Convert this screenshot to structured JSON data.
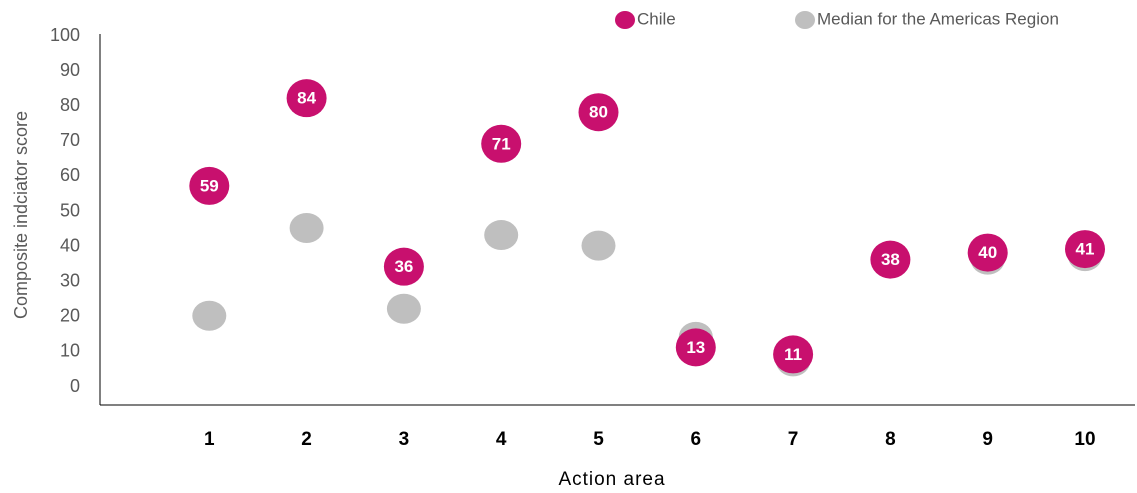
{
  "chart_data": {
    "type": "dot",
    "x_label": "Action area",
    "y_label": "Composite indciator score",
    "categories": [
      "1",
      "2",
      "3",
      "4",
      "5",
      "6",
      "7",
      "8",
      "9",
      "10"
    ],
    "series": [
      {
        "name": "Median for the Americas Region",
        "color": "#bfbfbf",
        "values": [
          22,
          47,
          24,
          45,
          42,
          16,
          9,
          37,
          38,
          39
        ]
      },
      {
        "name": "Chile",
        "color": "#c8106e",
        "values": [
          59,
          84,
          36,
          71,
          80,
          13,
          11,
          38,
          40,
          41
        ],
        "data_labels": true
      }
    ],
    "legend_order": [
      1,
      0
    ],
    "ylim": [
      0,
      100
    ],
    "yticks": [
      0,
      10,
      20,
      30,
      40,
      50,
      60,
      70,
      80,
      90,
      100
    ],
    "grid": false
  }
}
